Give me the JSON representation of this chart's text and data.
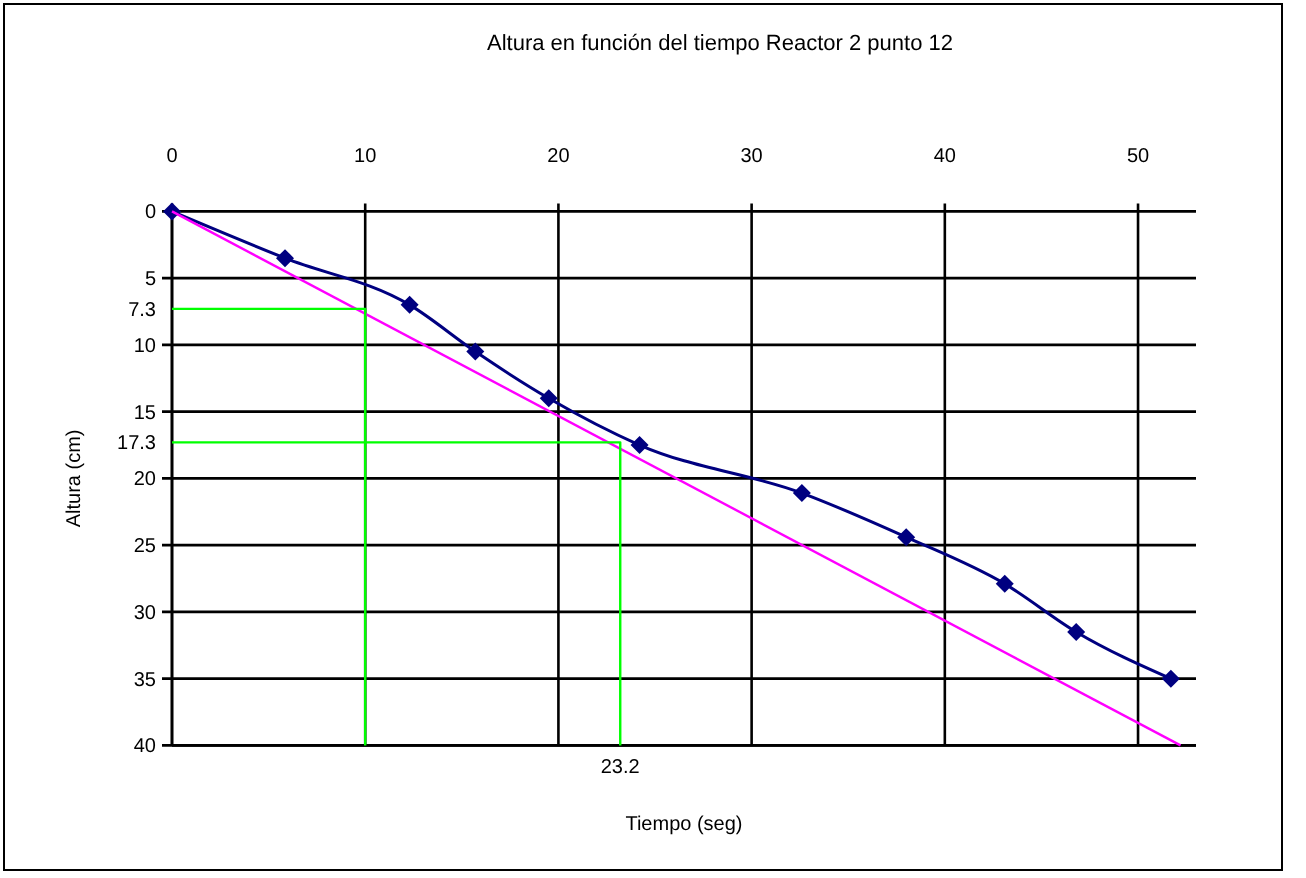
{
  "chart_data": {
    "type": "line",
    "title": "Altura en función del tiempo Reactor 2 punto 12",
    "xlabel": "Tiempo (seg)",
    "ylabel": "Altura (cm)",
    "xlim": [
      0,
      53
    ],
    "xticks": [
      0,
      10,
      20,
      30,
      40,
      50
    ],
    "ylim": [
      40,
      0
    ],
    "yticks": [
      0,
      5,
      7.3,
      10,
      15,
      17.3,
      20,
      25,
      30,
      35,
      40
    ],
    "grid": true,
    "marker": "diamond",
    "line_style": "solid",
    "series": [
      {
        "color": "#000080",
        "x": [
          0,
          5.85,
          12.3,
          15.7,
          19.5,
          24.2,
          32.6,
          38.0,
          43.1,
          46.8,
          51.7
        ],
        "values": [
          0,
          3.5,
          7.0,
          10.5,
          14.0,
          17.5,
          21.1,
          24.4,
          27.9,
          31.5,
          35.0
        ]
      },
      {
        "color": "#ff00ff",
        "marker": "none",
        "x": [
          0,
          52.2
        ],
        "values": [
          0,
          40
        ]
      },
      {
        "color": "#00ff00",
        "marker": "none",
        "x": [
          0,
          10,
          10
        ],
        "values": [
          7.3,
          7.3,
          40
        ]
      },
      {
        "color": "#00ff00",
        "marker": "none",
        "x": [
          0,
          23.2,
          23.2
        ],
        "values": [
          17.3,
          17.3,
          40
        ]
      }
    ],
    "annotations": [
      {
        "text": "23.2",
        "x": 23.2,
        "y": 40
      }
    ]
  }
}
